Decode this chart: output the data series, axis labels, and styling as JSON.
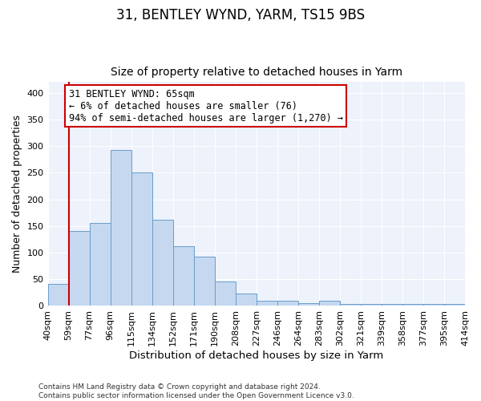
{
  "title1": "31, BENTLEY WYND, YARM, TS15 9BS",
  "title2": "Size of property relative to detached houses in Yarm",
  "xlabel": "Distribution of detached houses by size in Yarm",
  "ylabel": "Number of detached properties",
  "categories": [
    "40sqm",
    "59sqm",
    "77sqm",
    "96sqm",
    "115sqm",
    "134sqm",
    "152sqm",
    "171sqm",
    "190sqm",
    "208sqm",
    "227sqm",
    "246sqm",
    "264sqm",
    "283sqm",
    "302sqm",
    "321sqm",
    "339sqm",
    "358sqm",
    "377sqm",
    "395sqm",
    "414sqm"
  ],
  "values": [
    42,
    140,
    155,
    293,
    251,
    161,
    112,
    92,
    46,
    24,
    9,
    10,
    5,
    9,
    4,
    4,
    4,
    4,
    4,
    4
  ],
  "bar_color": "#c5d8f0",
  "bar_edge_color": "#6b9dc9",
  "vline_x": 1,
  "vline_color": "#cc0000",
  "annotation_line1": "31 BENTLEY WYND: 65sqm",
  "annotation_line2": "← 6% of detached houses are smaller (76)",
  "annotation_line3": "94% of semi-detached houses are larger (1,270) →",
  "annotation_box_color": "#ffffff",
  "annotation_edge_color": "#cc0000",
  "ylim": [
    0,
    420
  ],
  "yticks": [
    0,
    50,
    100,
    150,
    200,
    250,
    300,
    350,
    400
  ],
  "footer_text": "Contains HM Land Registry data © Crown copyright and database right 2024.\nContains public sector information licensed under the Open Government Licence v3.0.",
  "background_color": "#edf2fb",
  "grid_color": "#ffffff",
  "title1_fontsize": 12,
  "title2_fontsize": 10,
  "xlabel_fontsize": 9.5,
  "ylabel_fontsize": 9,
  "tick_fontsize": 8,
  "annotation_fontsize": 8.5,
  "footer_fontsize": 6.5
}
